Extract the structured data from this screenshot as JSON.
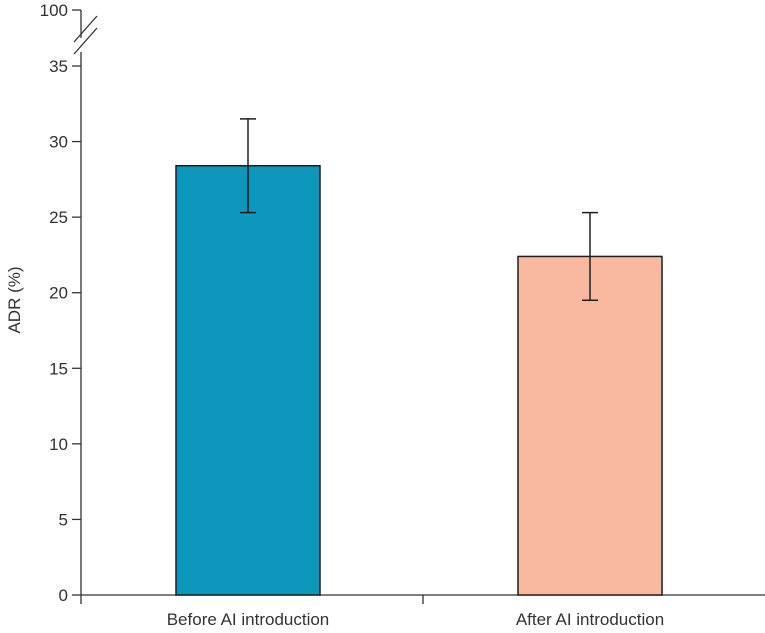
{
  "chart_data": {
    "type": "bar",
    "title": "",
    "xlabel": "",
    "ylabel": "ADR (%)",
    "categories": [
      "Before AI introduction",
      "After AI introduction"
    ],
    "values": [
      28.4,
      22.4
    ],
    "error_low": [
      25.3,
      19.5
    ],
    "error_high": [
      31.5,
      25.3
    ],
    "ylim": [
      0,
      35
    ],
    "yticks": [
      "0",
      "5",
      "10",
      "15",
      "20",
      "25",
      "30",
      "35"
    ],
    "ytick_values": [
      0,
      5,
      10,
      15,
      20,
      25,
      30,
      35
    ],
    "axis_break": true,
    "break_top_label": "100",
    "grid": false,
    "colors": [
      "#0e97bd",
      "#f8b9a0"
    ]
  }
}
